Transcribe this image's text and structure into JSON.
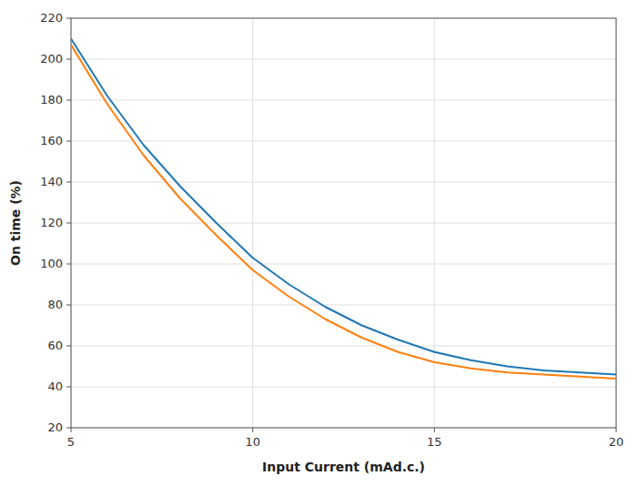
{
  "chart_data": {
    "type": "line",
    "xlabel": "Input Current (mAd.c.)",
    "ylabel": "On time (%)",
    "x": [
      5,
      6,
      7,
      8,
      9,
      10,
      11,
      12,
      13,
      14,
      15,
      16,
      17,
      18,
      19,
      20
    ],
    "series": [
      {
        "values": [
          210,
          182,
          158,
          138,
          120,
          103,
          90,
          79,
          70,
          63,
          57,
          53,
          50,
          48,
          47,
          46
        ]
      },
      {
        "values": [
          207,
          178,
          153,
          132,
          114,
          97,
          84,
          73,
          64,
          57,
          52,
          49,
          47,
          46,
          45,
          44
        ]
      }
    ],
    "xlim": [
      5,
      20
    ],
    "ylim": [
      20,
      220
    ],
    "xticks": [
      5,
      10,
      15,
      20
    ],
    "yticks": [
      20,
      40,
      60,
      80,
      100,
      120,
      140,
      160,
      180,
      200,
      220
    ],
    "grid": true
  }
}
